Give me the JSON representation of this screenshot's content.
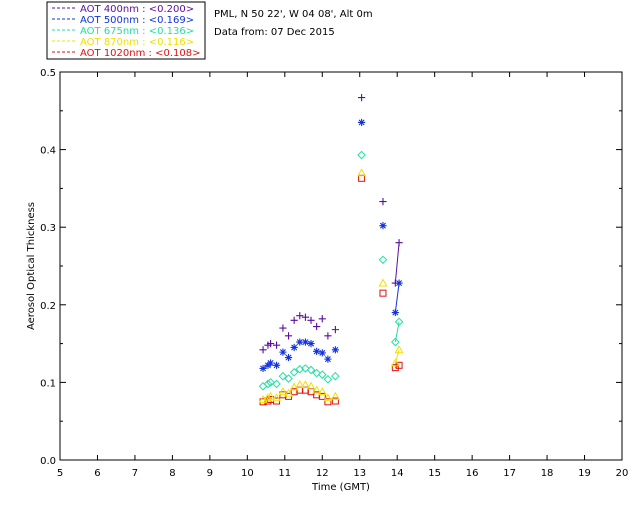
{
  "header": {
    "site": "PML, N 50 22', W 04 08', Alt 0m",
    "date": "Data from: 07 Dec 2015"
  },
  "chart_data": {
    "type": "scatter",
    "xlabel": "Time (GMT)",
    "ylabel": "Aerosol Optical Thickness",
    "xlim": [
      5,
      20
    ],
    "ylim": [
      0,
      0.5
    ],
    "xticks": [
      "5",
      "6",
      "7",
      "8",
      "9",
      "10",
      "11",
      "12",
      "13",
      "14",
      "15",
      "16",
      "17",
      "18",
      "19",
      "20"
    ],
    "yticks": [
      "0.0",
      "0.1",
      "0.2",
      "0.3",
      "0.4",
      "0.5"
    ],
    "legend_position": "top-left, outside plot",
    "series": [
      {
        "name": "AOT  400nm : <0.200>",
        "color": "#5a0fa0",
        "marker": "plus",
        "points": [
          [
            10.42,
            0.142
          ],
          [
            10.55,
            0.148
          ],
          [
            10.62,
            0.15
          ],
          [
            10.78,
            0.148
          ],
          [
            10.95,
            0.17
          ],
          [
            11.1,
            0.16
          ],
          [
            11.25,
            0.18
          ],
          [
            11.4,
            0.186
          ],
          [
            11.55,
            0.184
          ],
          [
            11.7,
            0.18
          ],
          [
            11.85,
            0.172
          ],
          [
            12.0,
            0.182
          ],
          [
            12.15,
            0.16
          ],
          [
            12.35,
            0.168
          ],
          [
            13.05,
            0.467
          ],
          [
            13.62,
            0.333
          ],
          [
            14.05,
            0.28
          ],
          [
            13.95,
            0.228
          ]
        ],
        "line_segments": [
          [
            [
              13.95,
              0.228
            ],
            [
              14.05,
              0.28
            ]
          ]
        ]
      },
      {
        "name": "AOT  500nm : <0.169>",
        "color": "#1033e0",
        "marker": "asterisk",
        "points": [
          [
            10.42,
            0.118
          ],
          [
            10.55,
            0.122
          ],
          [
            10.62,
            0.125
          ],
          [
            10.78,
            0.122
          ],
          [
            10.95,
            0.139
          ],
          [
            11.1,
            0.132
          ],
          [
            11.25,
            0.145
          ],
          [
            11.4,
            0.152
          ],
          [
            11.55,
            0.152
          ],
          [
            11.7,
            0.15
          ],
          [
            11.85,
            0.14
          ],
          [
            12.0,
            0.138
          ],
          [
            12.15,
            0.13
          ],
          [
            12.35,
            0.142
          ],
          [
            13.05,
            0.435
          ],
          [
            13.62,
            0.302
          ],
          [
            13.95,
            0.19
          ],
          [
            14.05,
            0.228
          ]
        ],
        "line_segments": [
          [
            [
              13.95,
              0.19
            ],
            [
              14.05,
              0.228
            ]
          ]
        ]
      },
      {
        "name": "AOT  675nm : <0.136>",
        "color": "#1fe0a0",
        "marker": "diamond",
        "points": [
          [
            10.42,
            0.095
          ],
          [
            10.55,
            0.098
          ],
          [
            10.62,
            0.1
          ],
          [
            10.78,
            0.098
          ],
          [
            10.95,
            0.108
          ],
          [
            11.1,
            0.105
          ],
          [
            11.25,
            0.113
          ],
          [
            11.4,
            0.117
          ],
          [
            11.55,
            0.118
          ],
          [
            11.7,
            0.116
          ],
          [
            11.85,
            0.112
          ],
          [
            12.0,
            0.11
          ],
          [
            12.15,
            0.104
          ],
          [
            12.35,
            0.108
          ],
          [
            13.05,
            0.393
          ],
          [
            13.62,
            0.258
          ],
          [
            13.95,
            0.152
          ],
          [
            14.05,
            0.178
          ]
        ],
        "line_segments": [
          [
            [
              13.95,
              0.152
            ],
            [
              14.05,
              0.178
            ]
          ]
        ]
      },
      {
        "name": "AOT  870nm : <0.116>",
        "color": "#f0e000",
        "marker": "triangle",
        "points": [
          [
            10.42,
            0.078
          ],
          [
            10.55,
            0.08
          ],
          [
            10.62,
            0.082
          ],
          [
            10.78,
            0.08
          ],
          [
            10.95,
            0.088
          ],
          [
            11.1,
            0.086
          ],
          [
            11.25,
            0.094
          ],
          [
            11.4,
            0.097
          ],
          [
            11.55,
            0.097
          ],
          [
            11.7,
            0.095
          ],
          [
            11.85,
            0.09
          ],
          [
            12.0,
            0.088
          ],
          [
            12.15,
            0.08
          ],
          [
            12.35,
            0.082
          ],
          [
            13.05,
            0.37
          ],
          [
            13.62,
            0.228
          ],
          [
            13.95,
            0.125
          ],
          [
            14.05,
            0.142
          ]
        ],
        "line_segments": [
          [
            [
              13.95,
              0.125
            ],
            [
              14.05,
              0.142
            ]
          ]
        ]
      },
      {
        "name": "AOT 1020nm : <0.108>",
        "color": "#e01010",
        "marker": "square",
        "points": [
          [
            10.42,
            0.075
          ],
          [
            10.55,
            0.076
          ],
          [
            10.62,
            0.078
          ],
          [
            10.78,
            0.076
          ],
          [
            10.95,
            0.084
          ],
          [
            11.1,
            0.082
          ],
          [
            11.25,
            0.088
          ],
          [
            11.4,
            0.09
          ],
          [
            11.55,
            0.09
          ],
          [
            11.7,
            0.088
          ],
          [
            11.85,
            0.084
          ],
          [
            12.0,
            0.082
          ],
          [
            12.15,
            0.075
          ],
          [
            12.35,
            0.076
          ],
          [
            13.05,
            0.363
          ],
          [
            13.62,
            0.215
          ],
          [
            13.95,
            0.119
          ],
          [
            14.05,
            0.122
          ]
        ],
        "line_segments": [
          [
            [
              13.95,
              0.119
            ],
            [
              14.05,
              0.122
            ]
          ]
        ]
      }
    ]
  }
}
